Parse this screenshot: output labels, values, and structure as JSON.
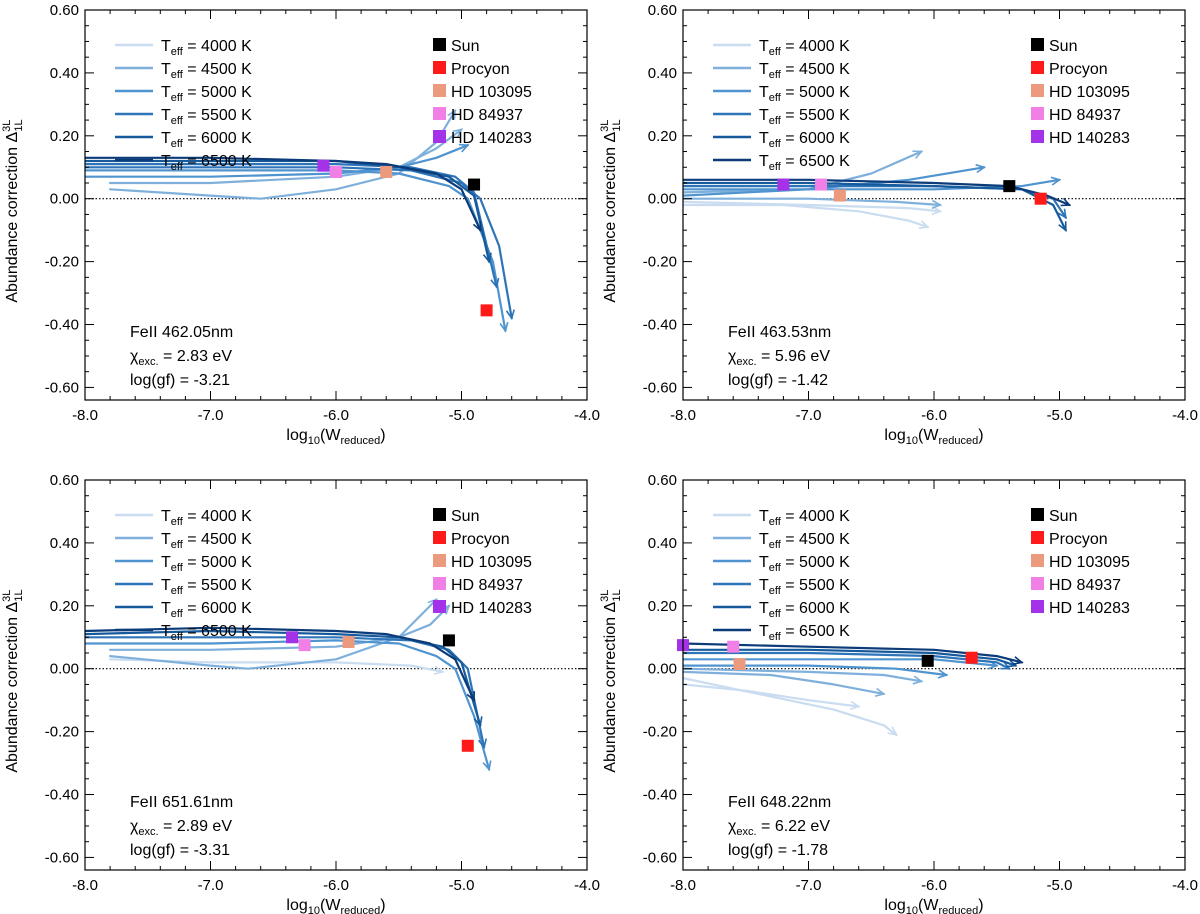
{
  "colors": {
    "teff_4000": "#c9dcf0",
    "teff_4500": "#7fb0dc",
    "teff_5000": "#4f93cf",
    "teff_5500": "#2e74b8",
    "teff_6000": "#175a9c",
    "teff_6500": "#0b3b78",
    "sun": "#000000",
    "procyon": "#ff1a1a",
    "hd103095": "#ec9a7d",
    "hd84937": "#f080e6",
    "hd140283": "#a432e8"
  },
  "legend": {
    "teff_prefix": "T",
    "teff_sub": "eff",
    "teff_lines": [
      {
        "value": "= 4000 K",
        "color_key": "teff_4000"
      },
      {
        "value": "= 4500 K",
        "color_key": "teff_4500"
      },
      {
        "value": "= 5000 K",
        "color_key": "teff_5000"
      },
      {
        "value": "= 5500 K",
        "color_key": "teff_5500"
      },
      {
        "value": "= 6000 K",
        "color_key": "teff_6000"
      },
      {
        "value": "= 6500 K",
        "color_key": "teff_6500"
      }
    ],
    "stars": [
      {
        "label": "Sun",
        "color_key": "sun"
      },
      {
        "label": "Procyon",
        "color_key": "procyon"
      },
      {
        "label": "HD 103095",
        "color_key": "hd103095"
      },
      {
        "label": "HD 84937",
        "color_key": "hd84937"
      },
      {
        "label": "HD 140283",
        "color_key": "hd140283"
      }
    ]
  },
  "axis_text": {
    "ylabel_main": "Abundance correction Δ",
    "ylabel_sup": "3L",
    "ylabel_sub": "1L",
    "xlabel_main": "log",
    "xlabel_sub1": "10",
    "xlabel_mid": "(W",
    "xlabel_sub2": "reduced",
    "xlabel_end": ")",
    "chi_main": "χ",
    "chi_sub": "exc."
  },
  "chart_data": [
    {
      "type": "line",
      "xlim": [
        -8.0,
        -4.0
      ],
      "ylim": [
        -0.64,
        0.6
      ],
      "xticks": [
        "-8.0",
        "-7.0",
        "-6.0",
        "-5.0",
        "-4.0"
      ],
      "yticks": [
        "0.60",
        "0.40",
        "0.20",
        "0.00",
        "-0.20",
        "-0.40",
        "-0.60"
      ],
      "reference_line_y": 0.0,
      "annotation": {
        "line": "FeII 462.05nm",
        "chi": "=  2.83 eV",
        "loggf": "log(gf) = -3.21"
      },
      "stars": [
        {
          "name": "Sun",
          "x": -4.9,
          "y": 0.045
        },
        {
          "name": "Procyon",
          "x": -4.8,
          "y": -0.355
        },
        {
          "name": "HD 103095",
          "x": -5.6,
          "y": 0.085
        },
        {
          "name": "HD 84937",
          "x": -6.0,
          "y": 0.085
        },
        {
          "name": "HD 140283",
          "x": -6.1,
          "y": 0.105
        }
      ],
      "series": [
        {
          "color_key": "teff_4500",
          "x": [
            -7.8,
            -7.0,
            -6.6,
            -6.0,
            -5.5,
            -5.2,
            -5.05
          ],
          "y": [
            0.03,
            0.01,
            0.0,
            0.03,
            0.08,
            0.18,
            0.28
          ]
        },
        {
          "color_key": "teff_4500",
          "x": [
            -7.8,
            -7.0,
            -6.0,
            -5.5,
            -5.2,
            -5.0
          ],
          "y": [
            0.05,
            0.05,
            0.07,
            0.1,
            0.16,
            0.22
          ]
        },
        {
          "color_key": "teff_5000",
          "x": [
            -8.0,
            -7.0,
            -6.0,
            -5.5,
            -5.2,
            -4.95
          ],
          "y": [
            0.07,
            0.07,
            0.08,
            0.1,
            0.13,
            0.17
          ]
        },
        {
          "color_key": "teff_5000",
          "x": [
            -8.0,
            -7.0,
            -6.0,
            -5.5,
            -5.1,
            -4.95,
            -4.75,
            -4.65
          ],
          "y": [
            0.09,
            0.09,
            0.09,
            0.08,
            0.04,
            0.0,
            -0.2,
            -0.42
          ]
        },
        {
          "color_key": "teff_5500",
          "x": [
            -8.0,
            -7.0,
            -6.0,
            -5.4,
            -5.0,
            -4.85,
            -4.7,
            -4.6
          ],
          "y": [
            0.1,
            0.1,
            0.1,
            0.09,
            0.05,
            0.0,
            -0.15,
            -0.38
          ]
        },
        {
          "color_key": "teff_5500",
          "x": [
            -8.0,
            -7.0,
            -6.0,
            -5.4,
            -5.05,
            -4.9,
            -4.72
          ],
          "y": [
            0.11,
            0.11,
            0.11,
            0.1,
            0.07,
            0.02,
            -0.28
          ]
        },
        {
          "color_key": "teff_6000",
          "x": [
            -8.0,
            -7.0,
            -6.0,
            -5.5,
            -5.1,
            -4.9,
            -4.78
          ],
          "y": [
            0.12,
            0.12,
            0.12,
            0.1,
            0.07,
            0.01,
            -0.2
          ]
        },
        {
          "color_key": "teff_6500",
          "x": [
            -8.0,
            -7.0,
            -6.0,
            -5.6,
            -5.2,
            -5.0,
            -4.85
          ],
          "y": [
            0.13,
            0.13,
            0.12,
            0.11,
            0.08,
            0.03,
            -0.1
          ]
        }
      ]
    },
    {
      "type": "line",
      "xlim": [
        -8.0,
        -4.0
      ],
      "ylim": [
        -0.64,
        0.6
      ],
      "xticks": [
        "-8.0",
        "-7.0",
        "-6.0",
        "-5.0",
        "-4.0"
      ],
      "yticks": [
        "0.60",
        "0.40",
        "0.20",
        "0.00",
        "-0.20",
        "-0.40",
        "-0.60"
      ],
      "reference_line_y": 0.0,
      "annotation": {
        "line": "FeII 463.53nm",
        "chi": "=  5.96 eV",
        "loggf": "log(gf) = -1.42"
      },
      "stars": [
        {
          "name": "Sun",
          "x": -5.4,
          "y": 0.04
        },
        {
          "name": "Procyon",
          "x": -5.15,
          "y": 0.0
        },
        {
          "name": "HD 103095",
          "x": -6.75,
          "y": 0.01
        },
        {
          "name": "HD 84937",
          "x": -6.9,
          "y": 0.045
        },
        {
          "name": "HD 140283",
          "x": -7.2,
          "y": 0.045
        }
      ],
      "series": [
        {
          "color_key": "teff_4000",
          "x": [
            -8.0,
            -7.2,
            -6.6,
            -6.2,
            -6.05
          ],
          "y": [
            -0.02,
            -0.02,
            -0.04,
            -0.07,
            -0.09
          ]
        },
        {
          "color_key": "teff_4000",
          "x": [
            -8.0,
            -7.0,
            -6.2,
            -5.95
          ],
          "y": [
            -0.01,
            -0.02,
            -0.03,
            -0.04
          ]
        },
        {
          "color_key": "teff_4500",
          "x": [
            -8.0,
            -7.0,
            -6.3,
            -5.95
          ],
          "y": [
            0.0,
            0.0,
            -0.01,
            -0.02
          ]
        },
        {
          "color_key": "teff_4500",
          "x": [
            -8.0,
            -7.0,
            -6.5,
            -6.1
          ],
          "y": [
            0.02,
            0.03,
            0.08,
            0.15
          ]
        },
        {
          "color_key": "teff_5000",
          "x": [
            -8.0,
            -7.0,
            -6.2,
            -5.6
          ],
          "y": [
            0.01,
            0.03,
            0.06,
            0.1
          ]
        },
        {
          "color_key": "teff_5000",
          "x": [
            -8.0,
            -7.0,
            -6.0,
            -5.3,
            -5.0
          ],
          "y": [
            0.03,
            0.03,
            0.03,
            0.04,
            0.06
          ]
        },
        {
          "color_key": "teff_5500",
          "x": [
            -8.0,
            -7.0,
            -6.0,
            -5.3,
            -5.05,
            -4.95
          ],
          "y": [
            0.04,
            0.04,
            0.04,
            0.03,
            0.0,
            -0.06
          ]
        },
        {
          "color_key": "teff_6000",
          "x": [
            -8.0,
            -7.0,
            -6.0,
            -5.3,
            -5.05,
            -4.95
          ],
          "y": [
            0.05,
            0.05,
            0.04,
            0.03,
            -0.02,
            -0.1
          ]
        },
        {
          "color_key": "teff_6500",
          "x": [
            -8.0,
            -7.0,
            -6.0,
            -5.4,
            -5.1,
            -4.92
          ],
          "y": [
            0.06,
            0.06,
            0.05,
            0.04,
            0.01,
            -0.02
          ]
        }
      ]
    },
    {
      "type": "line",
      "xlim": [
        -8.0,
        -4.0
      ],
      "ylim": [
        -0.64,
        0.6
      ],
      "xticks": [
        "-8.0",
        "-7.0",
        "-6.0",
        "-5.0",
        "-4.0"
      ],
      "yticks": [
        "0.60",
        "0.40",
        "0.20",
        "0.00",
        "-0.20",
        "-0.40",
        "-0.60"
      ],
      "reference_line_y": 0.0,
      "annotation": {
        "line": "FeII 651.61nm",
        "chi": "=  2.89 eV",
        "loggf": "log(gf) = -3.31"
      },
      "stars": [
        {
          "name": "Sun",
          "x": -5.1,
          "y": 0.09
        },
        {
          "name": "Procyon",
          "x": -4.95,
          "y": -0.245
        },
        {
          "name": "HD 103095",
          "x": -5.9,
          "y": 0.085
        },
        {
          "name": "HD 84937",
          "x": -6.25,
          "y": 0.075
        },
        {
          "name": "HD 140283",
          "x": -6.35,
          "y": 0.1
        }
      ],
      "series": [
        {
          "color_key": "teff_4000",
          "x": [
            -7.8,
            -7.0,
            -6.0,
            -5.4,
            -5.15
          ],
          "y": [
            0.03,
            0.02,
            0.02,
            0.01,
            -0.01
          ]
        },
        {
          "color_key": "teff_4500",
          "x": [
            -7.8,
            -7.0,
            -6.7,
            -6.0,
            -5.5,
            -5.3,
            -5.2
          ],
          "y": [
            0.04,
            0.01,
            0.0,
            0.03,
            0.1,
            0.18,
            0.22
          ]
        },
        {
          "color_key": "teff_4500",
          "x": [
            -7.8,
            -7.0,
            -6.0,
            -5.5,
            -5.25,
            -5.1
          ],
          "y": [
            0.06,
            0.06,
            0.07,
            0.1,
            0.14,
            0.2
          ]
        },
        {
          "color_key": "teff_5000",
          "x": [
            -8.0,
            -7.0,
            -6.0,
            -5.5,
            -5.2,
            -5.05,
            -4.9,
            -4.78
          ],
          "y": [
            0.08,
            0.08,
            0.09,
            0.08,
            0.04,
            0.0,
            -0.15,
            -0.32
          ]
        },
        {
          "color_key": "teff_5500",
          "x": [
            -8.0,
            -7.0,
            -6.0,
            -5.4,
            -5.1,
            -4.95,
            -4.82
          ],
          "y": [
            0.1,
            0.1,
            0.1,
            0.09,
            0.06,
            0.0,
            -0.25
          ]
        },
        {
          "color_key": "teff_6000",
          "x": [
            -8.0,
            -7.0,
            -6.0,
            -5.5,
            -5.15,
            -5.0,
            -4.85
          ],
          "y": [
            0.11,
            0.12,
            0.11,
            0.1,
            0.07,
            0.02,
            -0.18
          ]
        },
        {
          "color_key": "teff_6500",
          "x": [
            -8.0,
            -7.0,
            -6.0,
            -5.6,
            -5.25,
            -5.05,
            -4.9
          ],
          "y": [
            0.12,
            0.13,
            0.12,
            0.11,
            0.08,
            0.03,
            -0.1
          ]
        }
      ]
    },
    {
      "type": "line",
      "xlim": [
        -8.0,
        -4.0
      ],
      "ylim": [
        -0.64,
        0.6
      ],
      "xticks": [
        "-8.0",
        "-7.0",
        "-6.0",
        "-5.0",
        "-4.0"
      ],
      "yticks": [
        "0.60",
        "0.40",
        "0.20",
        "0.00",
        "-0.20",
        "-0.40",
        "-0.60"
      ],
      "reference_line_y": 0.0,
      "annotation": {
        "line": "FeII 648.22nm",
        "chi": "=  6.22 eV",
        "loggf": "log(gf) = -1.78"
      },
      "stars": [
        {
          "name": "Sun",
          "x": -6.05,
          "y": 0.025
        },
        {
          "name": "Procyon",
          "x": -5.7,
          "y": 0.035
        },
        {
          "name": "HD 103095",
          "x": -7.55,
          "y": 0.015
        },
        {
          "name": "HD 84937",
          "x": -7.6,
          "y": 0.07
        },
        {
          "name": "HD 140283",
          "x": -8.0,
          "y": 0.075
        }
      ],
      "series": [
        {
          "color_key": "teff_4000",
          "x": [
            -8.0,
            -7.4,
            -6.8,
            -6.4,
            -6.3
          ],
          "y": [
            -0.03,
            -0.08,
            -0.13,
            -0.18,
            -0.21
          ]
        },
        {
          "color_key": "teff_4000",
          "x": [
            -8.0,
            -7.5,
            -7.0,
            -6.6
          ],
          "y": [
            -0.05,
            -0.07,
            -0.1,
            -0.12
          ]
        },
        {
          "color_key": "teff_4500",
          "x": [
            -8.0,
            -7.3,
            -6.8,
            -6.4
          ],
          "y": [
            -0.01,
            -0.02,
            -0.05,
            -0.08
          ]
        },
        {
          "color_key": "teff_4500",
          "x": [
            -8.0,
            -7.0,
            -6.4,
            -6.1
          ],
          "y": [
            0.0,
            -0.01,
            -0.02,
            -0.04
          ]
        },
        {
          "color_key": "teff_5000",
          "x": [
            -8.0,
            -7.0,
            -6.3,
            -5.9
          ],
          "y": [
            0.01,
            0.01,
            0.0,
            -0.02
          ]
        },
        {
          "color_key": "teff_5000",
          "x": [
            -8.0,
            -7.0,
            -6.0,
            -5.5
          ],
          "y": [
            0.03,
            0.03,
            0.03,
            0.01
          ]
        },
        {
          "color_key": "teff_5500",
          "x": [
            -8.0,
            -7.0,
            -6.0,
            -5.5,
            -5.4
          ],
          "y": [
            0.05,
            0.05,
            0.04,
            0.02,
            0.0
          ]
        },
        {
          "color_key": "teff_6000",
          "x": [
            -8.0,
            -7.0,
            -6.0,
            -5.5,
            -5.35
          ],
          "y": [
            0.06,
            0.06,
            0.05,
            0.03,
            0.01
          ]
        },
        {
          "color_key": "teff_6500",
          "x": [
            -8.0,
            -7.0,
            -6.0,
            -5.5,
            -5.3
          ],
          "y": [
            0.08,
            0.07,
            0.06,
            0.04,
            0.02
          ]
        }
      ]
    }
  ]
}
